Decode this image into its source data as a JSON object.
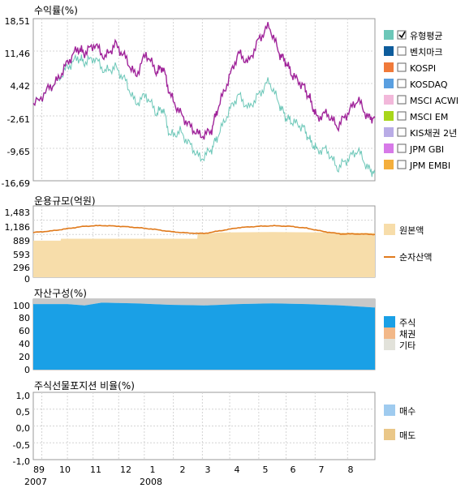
{
  "colors": {
    "fund": "#A0249A",
    "bench": "#6CC7B8",
    "net_assets": "#E07A1C",
    "principal": "#F7DDAA",
    "stock": "#1AA0E6",
    "bond": "#F2B888",
    "other": "#C8C8C8",
    "buy": "#9FCBEF",
    "sell": "#EAC788",
    "grid": "#D4D4D4"
  },
  "x_axis": {
    "month_labels": [
      "89",
      "10",
      "11",
      "12",
      "1",
      "2",
      "3",
      "4",
      "5",
      "6",
      "7",
      "8"
    ],
    "year_labels": [
      "2007",
      "2008"
    ]
  },
  "chart_data": [
    {
      "id": "returns",
      "type": "line",
      "title": "수익률(%)",
      "ylim": [
        -16.69,
        18.51
      ],
      "yticks": [
        "18,51",
        "11,46",
        "4,42",
        "-2,61",
        "-9,65",
        "-16,69"
      ],
      "x_range": [
        0,
        100
      ],
      "series": [
        {
          "name": "유형평균",
          "color": "#A0249A",
          "x": [
            0,
            4,
            7,
            10,
            13,
            15,
            18,
            21,
            24,
            27,
            30,
            33,
            36,
            38,
            40,
            43,
            46,
            49,
            52,
            54,
            57,
            60,
            63,
            66,
            69,
            72,
            74,
            76,
            79,
            81,
            83,
            86,
            89,
            92,
            95,
            98,
            100
          ],
          "y": [
            -0.5,
            3,
            5,
            9,
            12,
            11,
            13,
            10,
            13,
            10,
            6,
            11,
            7,
            8,
            2,
            -2,
            -5,
            -7,
            -6,
            -1,
            5,
            11,
            9,
            14,
            17,
            11,
            9,
            6,
            4,
            1,
            -3,
            -2,
            -5,
            -2,
            1,
            -3,
            -3
          ]
        },
        {
          "name": "벤치마크",
          "color": "#6CC7B8",
          "x": [
            0,
            4,
            7,
            10,
            13,
            15,
            18,
            21,
            24,
            27,
            30,
            33,
            36,
            38,
            40,
            43,
            46,
            49,
            52,
            54,
            57,
            60,
            63,
            66,
            69,
            72,
            74,
            76,
            79,
            81,
            83,
            86,
            89,
            92,
            95,
            98,
            100
          ],
          "y": [
            -0.5,
            3,
            5,
            8,
            10,
            9,
            10,
            7,
            8,
            5,
            0,
            2,
            -2,
            -1,
            -7,
            -6,
            -9,
            -12,
            -10,
            -7,
            -2,
            2,
            -1,
            2,
            5,
            0,
            -3,
            -4,
            -5,
            -8,
            -10,
            -10,
            -14,
            -12,
            -10,
            -14,
            -15
          ]
        }
      ],
      "legend": [
        {
          "label": "유형평균",
          "color": "#6CC7B8",
          "checked": true
        },
        {
          "label": "벤치마크",
          "color": "#0E5C9C",
          "checked": false
        },
        {
          "label": "KOSPI",
          "color": "#F07A3A",
          "checked": false
        },
        {
          "label": "KOSDAQ",
          "color": "#5A9FE0",
          "checked": false
        },
        {
          "label": "MSCI ACWI",
          "color": "#F2B8DA",
          "checked": false
        },
        {
          "label": "MSCI EM",
          "color": "#A8D61A",
          "checked": false
        },
        {
          "label": "KIS채권 2년",
          "color": "#B9ACE6",
          "checked": false
        },
        {
          "label": "JPM GBI",
          "color": "#D77AE8",
          "checked": false
        },
        {
          "label": "JPM EMBI",
          "color": "#F4AE3C",
          "checked": false
        }
      ]
    },
    {
      "id": "fund_size",
      "type": "area",
      "title": "운용규모(억원)",
      "ylim": [
        0,
        1483
      ],
      "yticks": [
        "1,483",
        "1,186",
        "889",
        "593",
        "296",
        "0"
      ],
      "x_range": [
        0,
        100
      ],
      "series": [
        {
          "name": "원본액",
          "color": "#F7DDAA",
          "x": [
            0,
            8,
            8.1,
            48,
            48.1,
            55,
            70,
            85,
            100
          ],
          "y": [
            760,
            760,
            800,
            800,
            900,
            930,
            940,
            930,
            920
          ]
        },
        {
          "name": "순자산액",
          "color": "#E07A1C",
          "x": [
            0,
            5,
            10,
            15,
            20,
            25,
            30,
            35,
            40,
            45,
            50,
            55,
            60,
            65,
            70,
            75,
            80,
            85,
            90,
            95,
            100
          ],
          "y": [
            930,
            960,
            1010,
            1060,
            1075,
            1060,
            1035,
            1000,
            950,
            920,
            910,
            970,
            1030,
            1055,
            1070,
            1060,
            1020,
            950,
            900,
            900,
            890
          ]
        }
      ],
      "legend": [
        {
          "label": "원본액",
          "color": "#F7DDAA"
        },
        {
          "label": "순자산액",
          "color": "#E07A1C"
        }
      ]
    },
    {
      "id": "asset_mix",
      "type": "area",
      "title": "자산구성(%)",
      "ylim": [
        0,
        100
      ],
      "yticks": [
        "100",
        "80",
        "60",
        "40",
        "20",
        "0"
      ],
      "x_range": [
        0,
        100
      ],
      "series": [
        {
          "name": "주식",
          "color": "#1AA0E6",
          "x": [
            0,
            10,
            15,
            20,
            30,
            40,
            50,
            60,
            70,
            80,
            90,
            100
          ],
          "y": [
            93,
            93,
            91,
            95,
            94,
            92,
            91,
            93,
            94,
            93,
            91,
            88
          ]
        },
        {
          "name": "채권",
          "color": "#F2B888",
          "x": [
            0,
            100
          ],
          "y": [
            0,
            0
          ]
        },
        {
          "name": "기타",
          "color": "#C8C8C8",
          "x": [
            0,
            10,
            15,
            20,
            30,
            40,
            50,
            60,
            70,
            80,
            90,
            100
          ],
          "y": [
            7,
            7,
            9,
            5,
            6,
            8,
            9,
            7,
            6,
            7,
            9,
            12
          ]
        }
      ],
      "legend": [
        {
          "label": "주식",
          "color": "#1AA0E6"
        },
        {
          "label": "채권",
          "color": "#F2B888"
        },
        {
          "label": "기타",
          "color": "#E2E2DA"
        }
      ]
    },
    {
      "id": "futures_ratio",
      "type": "area",
      "title": "주식선물포지션 비율(%)",
      "ylim": [
        -1,
        1
      ],
      "yticks": [
        "1,0",
        "0,5",
        "0,0",
        "-0,5",
        "-1,0"
      ],
      "x_range": [
        0,
        100
      ],
      "series": [
        {
          "name": "매수",
          "color": "#9FCBEF",
          "x": [
            0,
            100
          ],
          "y": [
            0,
            0
          ]
        },
        {
          "name": "매도",
          "color": "#EAC788",
          "x": [
            0,
            100
          ],
          "y": [
            0,
            0
          ]
        }
      ],
      "legend": [
        {
          "label": "매수",
          "color": "#9FCBEF"
        },
        {
          "label": "매도",
          "color": "#EAC788"
        }
      ]
    }
  ]
}
